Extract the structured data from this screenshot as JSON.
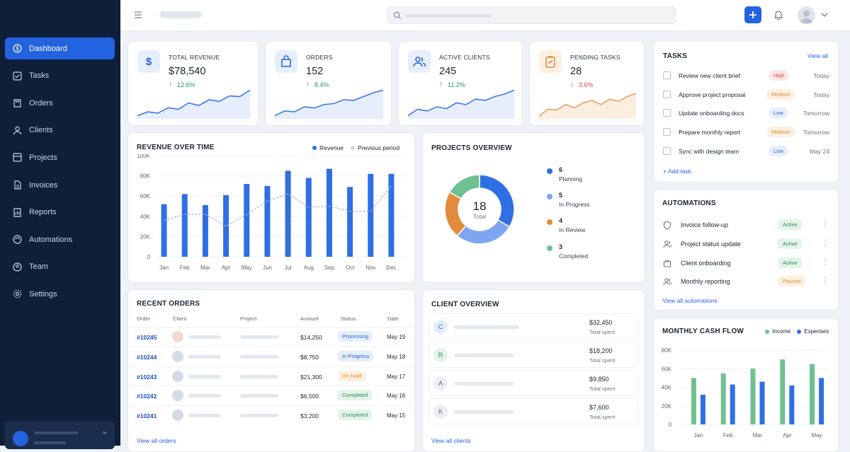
{
  "sidebar": {
    "items": [
      {
        "label": "Dashboard",
        "icon": "dashboard-icon"
      },
      {
        "label": "Tasks",
        "icon": "tasks-icon"
      },
      {
        "label": "Orders",
        "icon": "orders-icon"
      },
      {
        "label": "Clients",
        "icon": "clients-icon"
      },
      {
        "label": "Projects",
        "icon": "projects-icon"
      },
      {
        "label": "Invoices",
        "icon": "invoices-icon"
      },
      {
        "label": "Reports",
        "icon": "reports-icon"
      },
      {
        "label": "Automations",
        "icon": "automations-icon"
      },
      {
        "label": "Team",
        "icon": "team-icon"
      },
      {
        "label": "Settings",
        "icon": "settings-icon"
      }
    ]
  },
  "stats": [
    {
      "label": "TOTAL REVENUE",
      "value": "$78,540",
      "delta": "12.6%",
      "dir": "up",
      "icon": "dollar-icon"
    },
    {
      "label": "ORDERS",
      "value": "152",
      "delta": "8.4%",
      "dir": "up",
      "icon": "bag-icon"
    },
    {
      "label": "ACTIVE CLIENTS",
      "value": "245",
      "delta": "11.2%",
      "dir": "up",
      "icon": "users-icon"
    },
    {
      "label": "PENDING TASKS",
      "value": "28",
      "delta": "3.6%",
      "dir": "down",
      "icon": "clipboard-icon"
    }
  ],
  "tasks": {
    "title": "TASKS",
    "view_all": "View all",
    "add": "+ Add task",
    "items": [
      {
        "name": "Review new client brief",
        "priority": "High",
        "due": "Today"
      },
      {
        "name": "Approve project proposal",
        "priority": "Medium",
        "due": "Today"
      },
      {
        "name": "Update onboarding docs",
        "priority": "Low",
        "due": "Tomorrow"
      },
      {
        "name": "Prepare monthly report",
        "priority": "Medium",
        "due": "Tomorrow"
      },
      {
        "name": "Sync with design team",
        "priority": "Low",
        "due": "May 24"
      }
    ]
  },
  "revenue": {
    "title": "REVENUE OVER TIME",
    "legend": [
      "Revenue",
      "Previous period"
    ]
  },
  "projects": {
    "title": "PROJECTS OVERVIEW",
    "total": "18",
    "total_label": "Total",
    "items": [
      {
        "count": "6",
        "label": "Planning",
        "color": "#2f6fe4"
      },
      {
        "count": "5",
        "label": "In Progress",
        "color": "#7ea6f0"
      },
      {
        "count": "4",
        "label": "In Review",
        "color": "#e38b3c"
      },
      {
        "count": "3",
        "label": "Completed",
        "color": "#6fc08f"
      }
    ]
  },
  "automations": {
    "title": "AUTOMATIONS",
    "view_all": "View all automations",
    "items": [
      {
        "name": "Invoice follow-up",
        "status": "Active",
        "icon": "shield-icon"
      },
      {
        "name": "Project status update",
        "status": "Active",
        "icon": "users-icon"
      },
      {
        "name": "Client onboarding",
        "status": "Active",
        "icon": "briefcase-icon"
      },
      {
        "name": "Monthly reporting",
        "status": "Paused",
        "icon": "users-icon"
      }
    ]
  },
  "orders": {
    "title": "RECENT ORDERS",
    "view_all": "View all orders",
    "columns": [
      "Order",
      "Client",
      "Project",
      "Amount",
      "Status",
      "Date"
    ],
    "rows": [
      {
        "id": "#10245",
        "amount": "$14,250",
        "status": "Processing",
        "date": "May 19"
      },
      {
        "id": "#10244",
        "amount": "$8,750",
        "status": "In Progress",
        "date": "May 18"
      },
      {
        "id": "#10243",
        "amount": "$21,300",
        "status": "On Hold",
        "date": "May 17"
      },
      {
        "id": "#10242",
        "amount": "$6,500",
        "status": "Completed",
        "date": "May 16"
      },
      {
        "id": "#10241",
        "amount": "$3,200",
        "status": "Completed",
        "date": "May 15"
      }
    ]
  },
  "clients": {
    "title": "CLIENT OVERVIEW",
    "view_all": "View all clients",
    "spent_label": "Total spent",
    "items": [
      {
        "initial": "C",
        "amount": "$32,450"
      },
      {
        "initial": "R",
        "amount": "$18,200"
      },
      {
        "initial": "A",
        "amount": "$9,850"
      },
      {
        "initial": "K",
        "amount": "$7,600"
      }
    ]
  },
  "cashflow": {
    "title": "MONTHLY CASH FLOW",
    "legend": [
      "Income",
      "Expenses"
    ]
  },
  "colors": {
    "accent": "#2463e0",
    "income": "#6fc08f",
    "expense": "#2f6fe4",
    "up": "#1f9a55",
    "down": "#e0483c"
  },
  "chart_data": [
    {
      "type": "bar",
      "title": "REVENUE OVER TIME",
      "categories": [
        "Jan",
        "Feb",
        "Mar",
        "Apr",
        "May",
        "Jun",
        "Jul",
        "Aug",
        "Sep",
        "Oct",
        "Nov",
        "Dec"
      ],
      "series": [
        {
          "name": "Revenue",
          "type": "bar",
          "values": [
            52000,
            62000,
            51000,
            61000,
            72000,
            70000,
            85000,
            78000,
            87000,
            69000,
            82000,
            82000
          ]
        },
        {
          "name": "Previous period",
          "type": "line",
          "values": [
            36000,
            42000,
            42000,
            30000,
            42000,
            55000,
            62000,
            49000,
            50000,
            45000,
            45000,
            70000
          ]
        }
      ],
      "yticks": [
        "0",
        "20K",
        "40K",
        "60K",
        "80K",
        "100K"
      ],
      "ylim": [
        0,
        100000
      ]
    },
    {
      "type": "pie",
      "title": "PROJECTS OVERVIEW",
      "categories": [
        "Planning",
        "In Progress",
        "In Review",
        "Completed"
      ],
      "values": [
        6,
        5,
        4,
        3
      ]
    },
    {
      "type": "bar",
      "title": "MONTHLY CASH FLOW",
      "categories": [
        "Jan",
        "Feb",
        "Mar",
        "Apr",
        "May"
      ],
      "series": [
        {
          "name": "Income",
          "values": [
            50000,
            55000,
            60000,
            70000,
            65000
          ]
        },
        {
          "name": "Expenses",
          "values": [
            32000,
            43000,
            46000,
            42000,
            50000
          ]
        }
      ],
      "yticks": [
        "0",
        "20K",
        "40K",
        "60K",
        "80K"
      ],
      "ylim": [
        0,
        80000
      ]
    }
  ]
}
